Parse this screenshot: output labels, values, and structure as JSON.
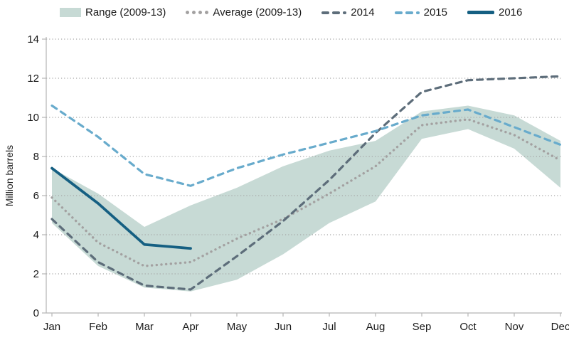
{
  "ui": {
    "ylabel": "Million barrels"
  },
  "legend": {
    "items": [
      {
        "label": "Range (2009-13)",
        "swatch": "band-swatch",
        "color": "#c7dad5"
      },
      {
        "label": "Average (2009-13)",
        "swatch": "dotted-swatch",
        "color": "#a3a1a1"
      },
      {
        "label": "2014",
        "swatch": "dashed-swatch",
        "color": "#5d6d7a"
      },
      {
        "label": "2015",
        "swatch": "dashed-swatch",
        "color": "#68abcc"
      },
      {
        "label": "2016",
        "swatch": "solid-swatch",
        "color": "#155f82"
      }
    ]
  },
  "chart_data": {
    "type": "line",
    "title": "",
    "xlabel": "",
    "ylabel": "Million barrels",
    "ylim": [
      0,
      14
    ],
    "ytick_step": 2,
    "grid": "horizontal-dotted",
    "legend_position": "top",
    "categories": [
      "Jan",
      "Feb",
      "Mar",
      "Apr",
      "May",
      "Jun",
      "Jul",
      "Aug",
      "Sep",
      "Oct",
      "Nov",
      "Dec"
    ],
    "series": [
      {
        "name": "Range (2009-13)",
        "type": "band",
        "color": "#c7dad5",
        "low": [
          4.6,
          2.4,
          1.3,
          1.1,
          1.7,
          3.0,
          4.6,
          5.7,
          8.9,
          9.4,
          8.4,
          6.4
        ],
        "high": [
          7.4,
          6.1,
          4.4,
          5.5,
          6.4,
          7.5,
          8.3,
          8.8,
          10.3,
          10.6,
          10.1,
          8.8
        ]
      },
      {
        "name": "Average (2009-13)",
        "type": "line",
        "style": "dotted",
        "color": "#a3a1a1",
        "values": [
          5.9,
          3.6,
          2.4,
          2.6,
          3.8,
          4.8,
          6.1,
          7.5,
          9.6,
          9.9,
          9.1,
          7.8
        ]
      },
      {
        "name": "2014",
        "type": "line",
        "style": "dashed",
        "color": "#5d6d7a",
        "values": [
          4.8,
          2.6,
          1.4,
          1.2,
          2.9,
          4.7,
          6.8,
          9.2,
          11.3,
          11.9,
          12.0,
          12.1
        ]
      },
      {
        "name": "2015",
        "type": "line",
        "style": "dashed",
        "color": "#68abcc",
        "values": [
          10.6,
          9.0,
          7.1,
          6.5,
          7.4,
          8.1,
          8.7,
          9.3,
          10.1,
          10.4,
          9.5,
          8.6
        ]
      },
      {
        "name": "2016",
        "type": "line",
        "style": "solid",
        "color": "#155f82",
        "values": [
          7.4,
          5.6,
          3.5,
          3.3,
          null,
          null,
          null,
          null,
          null,
          null,
          null,
          null
        ]
      }
    ]
  }
}
